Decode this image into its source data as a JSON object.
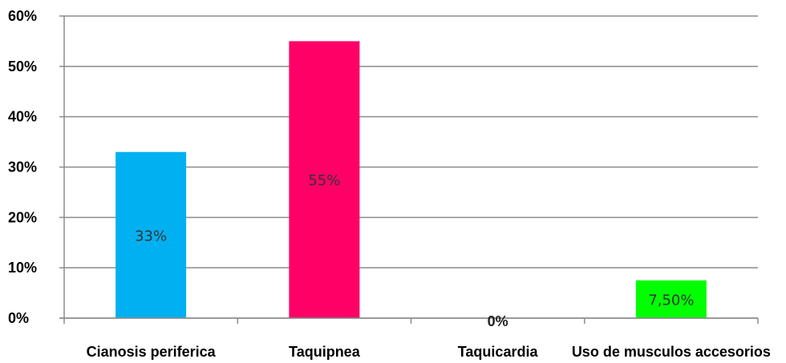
{
  "chart_data": {
    "type": "bar",
    "title": "",
    "xlabel": "",
    "ylabel": "",
    "categories": [
      "Cianosis periferica",
      "Taquipnea",
      "Taquicardia",
      "Uso de musculos accesorios"
    ],
    "values": [
      0.33,
      0.55,
      0.0,
      0.075
    ],
    "data_labels": [
      "33%",
      "55%",
      "0%",
      "7,50%"
    ],
    "colors": [
      "#00b0f0",
      "#ff0066",
      "#ff0066",
      "#00ff00"
    ],
    "ylim": [
      0,
      0.6
    ],
    "yticks": [
      0,
      0.1,
      0.2,
      0.3,
      0.4,
      0.5,
      0.6
    ],
    "ytick_labels": [
      "0%",
      "10%",
      "20%",
      "30%",
      "40%",
      "50%",
      "60%"
    ],
    "grid": true,
    "legend": "none"
  }
}
